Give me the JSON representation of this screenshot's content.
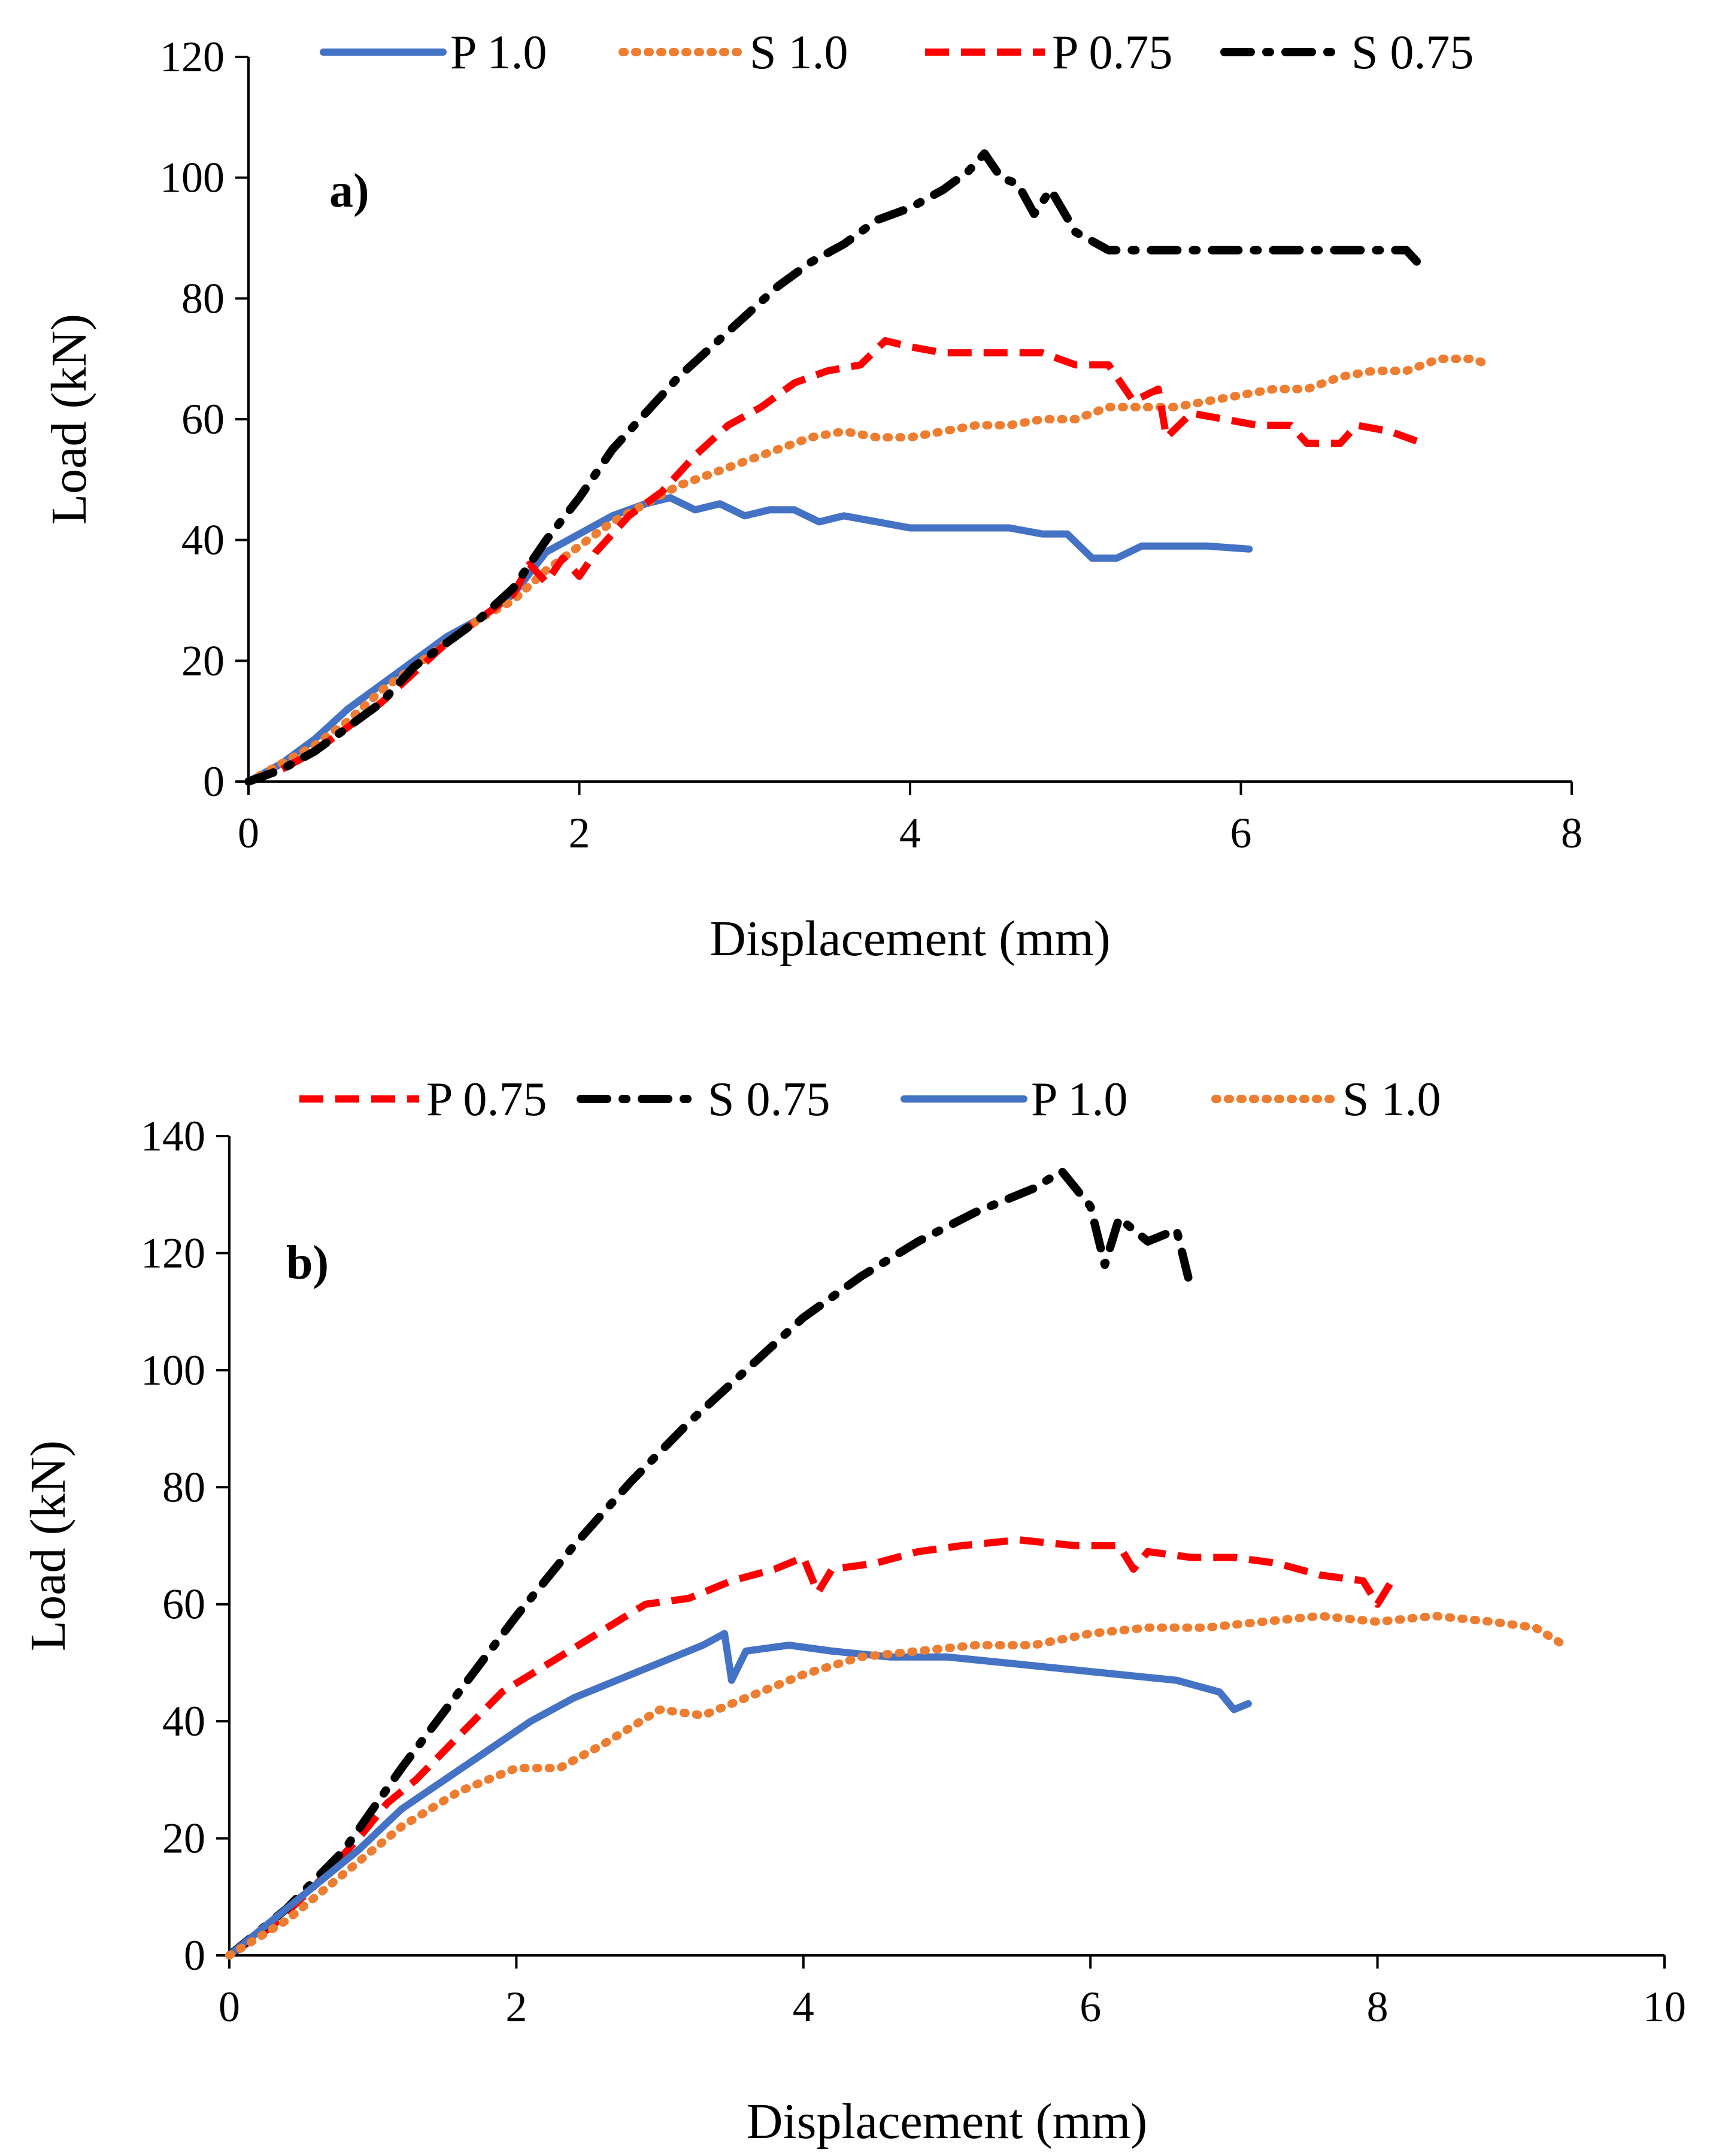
{
  "chart_data": [
    {
      "type": "line",
      "panel_label": "a)",
      "xlabel": "Displacement (mm)",
      "ylabel": "Load (kN)",
      "xlim": [
        0,
        8
      ],
      "ylim": [
        0,
        120
      ],
      "xticks": [
        "0",
        "2",
        "4",
        "6",
        "8"
      ],
      "yticks": [
        "0",
        "20",
        "40",
        "60",
        "80",
        "100",
        "120"
      ],
      "legend_position": "top",
      "series": [
        {
          "name": "P 1.0",
          "color": "#4472C4",
          "style": "solid",
          "points": [
            [
              0,
              0
            ],
            [
              0.2,
              3
            ],
            [
              0.4,
              7
            ],
            [
              0.6,
              12
            ],
            [
              0.8,
              16
            ],
            [
              1.0,
              20
            ],
            [
              1.2,
              24
            ],
            [
              1.4,
              27
            ],
            [
              1.6,
              31
            ],
            [
              1.8,
              38
            ],
            [
              2.0,
              41
            ],
            [
              2.2,
              44
            ],
            [
              2.4,
              46
            ],
            [
              2.55,
              47
            ],
            [
              2.7,
              45
            ],
            [
              2.85,
              46
            ],
            [
              3.0,
              44
            ],
            [
              3.15,
              45
            ],
            [
              3.3,
              45
            ],
            [
              3.45,
              43
            ],
            [
              3.6,
              44
            ],
            [
              3.8,
              43
            ],
            [
              4.0,
              42
            ],
            [
              4.2,
              42
            ],
            [
              4.4,
              42
            ],
            [
              4.6,
              42
            ],
            [
              4.8,
              41
            ],
            [
              4.95,
              41
            ],
            [
              5.1,
              37
            ],
            [
              5.25,
              37
            ],
            [
              5.4,
              39
            ],
            [
              5.8,
              39
            ],
            [
              6.05,
              38.5
            ]
          ]
        },
        {
          "name": "S 1.0",
          "color": "#ED7D31",
          "style": "dotted",
          "points": [
            [
              0,
              0
            ],
            [
              0.2,
              3
            ],
            [
              0.4,
              6
            ],
            [
              0.6,
              10
            ],
            [
              0.8,
              15
            ],
            [
              1.0,
              19
            ],
            [
              1.2,
              23
            ],
            [
              1.4,
              27
            ],
            [
              1.6,
              30
            ],
            [
              1.8,
              35
            ],
            [
              2.0,
              39
            ],
            [
              2.2,
              43
            ],
            [
              2.4,
              46
            ],
            [
              2.6,
              49
            ],
            [
              2.8,
              51
            ],
            [
              3.0,
              53
            ],
            [
              3.2,
              55
            ],
            [
              3.4,
              57
            ],
            [
              3.6,
              58
            ],
            [
              3.8,
              57
            ],
            [
              4.0,
              57
            ],
            [
              4.2,
              58
            ],
            [
              4.4,
              59
            ],
            [
              4.6,
              59
            ],
            [
              4.8,
              60
            ],
            [
              5.0,
              60
            ],
            [
              5.2,
              62
            ],
            [
              5.4,
              62
            ],
            [
              5.6,
              62
            ],
            [
              5.8,
              63
            ],
            [
              6.0,
              64
            ],
            [
              6.2,
              65
            ],
            [
              6.4,
              65
            ],
            [
              6.6,
              67
            ],
            [
              6.8,
              68
            ],
            [
              7.0,
              68
            ],
            [
              7.2,
              70
            ],
            [
              7.4,
              70
            ],
            [
              7.5,
              69
            ]
          ]
        },
        {
          "name": "P 0.75",
          "color": "#FF0000",
          "style": "dashed",
          "points": [
            [
              0,
              0
            ],
            [
              0.2,
              2
            ],
            [
              0.4,
              5
            ],
            [
              0.6,
              9
            ],
            [
              0.8,
              13
            ],
            [
              1.0,
              18
            ],
            [
              1.2,
              23
            ],
            [
              1.4,
              27
            ],
            [
              1.6,
              31
            ],
            [
              1.7,
              36
            ],
            [
              1.8,
              33
            ],
            [
              1.9,
              37
            ],
            [
              2.0,
              34
            ],
            [
              2.1,
              38
            ],
            [
              2.3,
              44
            ],
            [
              2.5,
              48
            ],
            [
              2.7,
              54
            ],
            [
              2.9,
              59
            ],
            [
              3.1,
              62
            ],
            [
              3.3,
              66
            ],
            [
              3.5,
              68
            ],
            [
              3.7,
              69
            ],
            [
              3.85,
              73
            ],
            [
              4.0,
              72
            ],
            [
              4.2,
              71
            ],
            [
              4.4,
              71
            ],
            [
              4.6,
              71
            ],
            [
              4.8,
              71
            ],
            [
              5.0,
              69
            ],
            [
              5.2,
              69
            ],
            [
              5.35,
              63
            ],
            [
              5.5,
              65
            ],
            [
              5.55,
              57
            ],
            [
              5.7,
              61
            ],
            [
              5.9,
              60
            ],
            [
              6.1,
              59
            ],
            [
              6.3,
              59
            ],
            [
              6.4,
              56
            ],
            [
              6.6,
              56
            ],
            [
              6.7,
              59
            ],
            [
              6.9,
              58
            ],
            [
              7.1,
              56
            ]
          ]
        },
        {
          "name": "S 0.75",
          "color": "#000000",
          "style": "dashdot",
          "points": [
            [
              0,
              0
            ],
            [
              0.2,
              2
            ],
            [
              0.4,
              5
            ],
            [
              0.6,
              9
            ],
            [
              0.8,
              13
            ],
            [
              1.0,
              19
            ],
            [
              1.2,
              23
            ],
            [
              1.4,
              27
            ],
            [
              1.6,
              32
            ],
            [
              1.8,
              40
            ],
            [
              2.0,
              47
            ],
            [
              2.2,
              55
            ],
            [
              2.4,
              61
            ],
            [
              2.6,
              67
            ],
            [
              2.8,
              72
            ],
            [
              3.0,
              77
            ],
            [
              3.2,
              82
            ],
            [
              3.4,
              86
            ],
            [
              3.6,
              89
            ],
            [
              3.8,
              93
            ],
            [
              4.0,
              95
            ],
            [
              4.2,
              98
            ],
            [
              4.35,
              101
            ],
            [
              4.45,
              104
            ],
            [
              4.55,
              100
            ],
            [
              4.65,
              99
            ],
            [
              4.75,
              94
            ],
            [
              4.85,
              98
            ],
            [
              5.0,
              91
            ],
            [
              5.2,
              88
            ],
            [
              5.6,
              88
            ],
            [
              6.0,
              88
            ],
            [
              6.5,
              88
            ],
            [
              7.0,
              88
            ],
            [
              7.1,
              85
            ]
          ]
        }
      ]
    },
    {
      "type": "line",
      "panel_label": "b)",
      "xlabel": "Displacement (mm)",
      "ylabel": "Load (kN)",
      "xlim": [
        0,
        10
      ],
      "ylim": [
        0,
        140
      ],
      "xticks": [
        "0",
        "2",
        "4",
        "6",
        "8",
        "10"
      ],
      "yticks": [
        "0",
        "20",
        "40",
        "60",
        "80",
        "100",
        "120",
        "140"
      ],
      "legend_position": "top",
      "series": [
        {
          "name": "P 0.75",
          "color": "#FF0000",
          "style": "dashed",
          "points": [
            [
              0,
              0
            ],
            [
              0.3,
              5
            ],
            [
              0.6,
              12
            ],
            [
              0.9,
              20
            ],
            [
              1.1,
              26
            ],
            [
              1.3,
              30
            ],
            [
              1.5,
              35
            ],
            [
              1.7,
              40
            ],
            [
              1.9,
              45
            ],
            [
              2.1,
              48
            ],
            [
              2.3,
              51
            ],
            [
              2.5,
              54
            ],
            [
              2.7,
              57
            ],
            [
              2.9,
              60
            ],
            [
              3.2,
              61
            ],
            [
              3.5,
              64
            ],
            [
              3.8,
              66
            ],
            [
              4.0,
              68
            ],
            [
              4.1,
              62
            ],
            [
              4.2,
              66
            ],
            [
              4.5,
              67
            ],
            [
              4.8,
              69
            ],
            [
              5.1,
              70
            ],
            [
              5.5,
              71
            ],
            [
              5.9,
              70
            ],
            [
              6.2,
              70
            ],
            [
              6.3,
              66
            ],
            [
              6.4,
              69
            ],
            [
              6.7,
              68
            ],
            [
              7.0,
              68
            ],
            [
              7.3,
              67
            ],
            [
              7.6,
              65
            ],
            [
              7.9,
              64
            ],
            [
              8.0,
              60
            ],
            [
              8.1,
              64
            ]
          ]
        },
        {
          "name": "S 0.75",
          "color": "#000000",
          "style": "dashdot",
          "points": [
            [
              0,
              0
            ],
            [
              0.4,
              8
            ],
            [
              0.8,
              18
            ],
            [
              1.2,
              32
            ],
            [
              1.6,
              45
            ],
            [
              2.0,
              58
            ],
            [
              2.4,
              70
            ],
            [
              2.8,
              81
            ],
            [
              3.2,
              91
            ],
            [
              3.6,
              100
            ],
            [
              4.0,
              109
            ],
            [
              4.4,
              116
            ],
            [
              4.8,
              122
            ],
            [
              5.2,
              127
            ],
            [
              5.6,
              131
            ],
            [
              5.8,
              134
            ],
            [
              6.0,
              128
            ],
            [
              6.1,
              118
            ],
            [
              6.2,
              126
            ],
            [
              6.4,
              122
            ],
            [
              6.6,
              124
            ],
            [
              6.7,
              114
            ]
          ]
        },
        {
          "name": "P 1.0",
          "color": "#4472C4",
          "style": "solid",
          "points": [
            [
              0,
              0
            ],
            [
              0.3,
              6
            ],
            [
              0.6,
              12
            ],
            [
              0.9,
              18
            ],
            [
              1.2,
              25
            ],
            [
              1.5,
              30
            ],
            [
              1.8,
              35
            ],
            [
              2.1,
              40
            ],
            [
              2.4,
              44
            ],
            [
              2.7,
              47
            ],
            [
              3.0,
              50
            ],
            [
              3.3,
              53
            ],
            [
              3.45,
              55
            ],
            [
              3.5,
              47
            ],
            [
              3.6,
              52
            ],
            [
              3.9,
              53
            ],
            [
              4.2,
              52
            ],
            [
              4.6,
              51
            ],
            [
              5.0,
              51
            ],
            [
              5.4,
              50
            ],
            [
              5.8,
              49
            ],
            [
              6.2,
              48
            ],
            [
              6.6,
              47
            ],
            [
              6.9,
              45
            ],
            [
              7.0,
              42
            ],
            [
              7.1,
              43
            ]
          ]
        },
        {
          "name": "S 1.0",
          "color": "#ED7D31",
          "style": "dotted",
          "points": [
            [
              0,
              0
            ],
            [
              0.4,
              6
            ],
            [
              0.8,
              14
            ],
            [
              1.2,
              22
            ],
            [
              1.6,
              28
            ],
            [
              2.0,
              32
            ],
            [
              2.3,
              32
            ],
            [
              2.6,
              36
            ],
            [
              3.0,
              42
            ],
            [
              3.3,
              41
            ],
            [
              3.6,
              44
            ],
            [
              4.0,
              48
            ],
            [
              4.4,
              51
            ],
            [
              4.8,
              52
            ],
            [
              5.2,
              53
            ],
            [
              5.6,
              53
            ],
            [
              6.0,
              55
            ],
            [
              6.4,
              56
            ],
            [
              6.8,
              56
            ],
            [
              7.2,
              57
            ],
            [
              7.6,
              58
            ],
            [
              8.0,
              57
            ],
            [
              8.4,
              58
            ],
            [
              8.8,
              57
            ],
            [
              9.1,
              56
            ],
            [
              9.3,
              53
            ]
          ]
        }
      ]
    }
  ]
}
